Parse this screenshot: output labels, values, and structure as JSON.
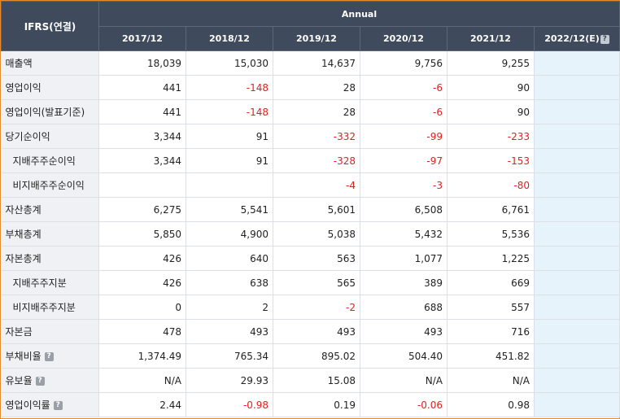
{
  "header": {
    "corner_label": "IFRS(연결)",
    "group_label": "Annual",
    "columns": [
      "2017/12",
      "2018/12",
      "2019/12",
      "2020/12",
      "2021/12",
      "2022/12(E)"
    ],
    "help_glyph": "?"
  },
  "rows": [
    {
      "label": "매출액",
      "values": [
        "18,039",
        "15,030",
        "14,637",
        "9,756",
        "9,255",
        ""
      ]
    },
    {
      "label": "영업이익",
      "values": [
        "441",
        "-148",
        "28",
        "-6",
        "90",
        ""
      ]
    },
    {
      "label": "영업이익(발표기준)",
      "values": [
        "441",
        "-148",
        "28",
        "-6",
        "90",
        ""
      ]
    },
    {
      "label": "당기순이익",
      "values": [
        "3,344",
        "91",
        "-332",
        "-99",
        "-233",
        ""
      ]
    },
    {
      "label": "지배주주순이익",
      "values": [
        "3,344",
        "91",
        "-328",
        "-97",
        "-153",
        ""
      ]
    },
    {
      "label": "비지배주주순이익",
      "values": [
        "",
        "",
        "-4",
        "-3",
        "-80",
        ""
      ]
    },
    {
      "label": "자산총계",
      "values": [
        "6,275",
        "5,541",
        "5,601",
        "6,508",
        "6,761",
        ""
      ]
    },
    {
      "label": "부채총계",
      "values": [
        "5,850",
        "4,900",
        "5,038",
        "5,432",
        "5,536",
        ""
      ]
    },
    {
      "label": "자본총계",
      "values": [
        "426",
        "640",
        "563",
        "1,077",
        "1,225",
        ""
      ]
    },
    {
      "label": "지배주주지분",
      "values": [
        "426",
        "638",
        "565",
        "389",
        "669",
        ""
      ]
    },
    {
      "label": "비지배주주지분",
      "values": [
        "0",
        "2",
        "-2",
        "688",
        "557",
        ""
      ]
    },
    {
      "label": "자본금",
      "values": [
        "478",
        "493",
        "493",
        "493",
        "716",
        ""
      ]
    },
    {
      "label": "부채비율",
      "values": [
        "1,374.49",
        "765.34",
        "895.02",
        "504.40",
        "451.82",
        ""
      ]
    },
    {
      "label": "유보율",
      "values": [
        "N/A",
        "29.93",
        "15.08",
        "N/A",
        "N/A",
        ""
      ]
    },
    {
      "label": "영업이익률",
      "values": [
        "2.44",
        "-0.98",
        "0.19",
        "-0.06",
        "0.98",
        ""
      ]
    }
  ],
  "colors": {
    "header_bg": "#3f4a5c",
    "negative": "#e02020",
    "estimate_bg": "#e6f3fb",
    "label_bg": "#f0f1f4",
    "frame_border": "#e38a2e"
  }
}
